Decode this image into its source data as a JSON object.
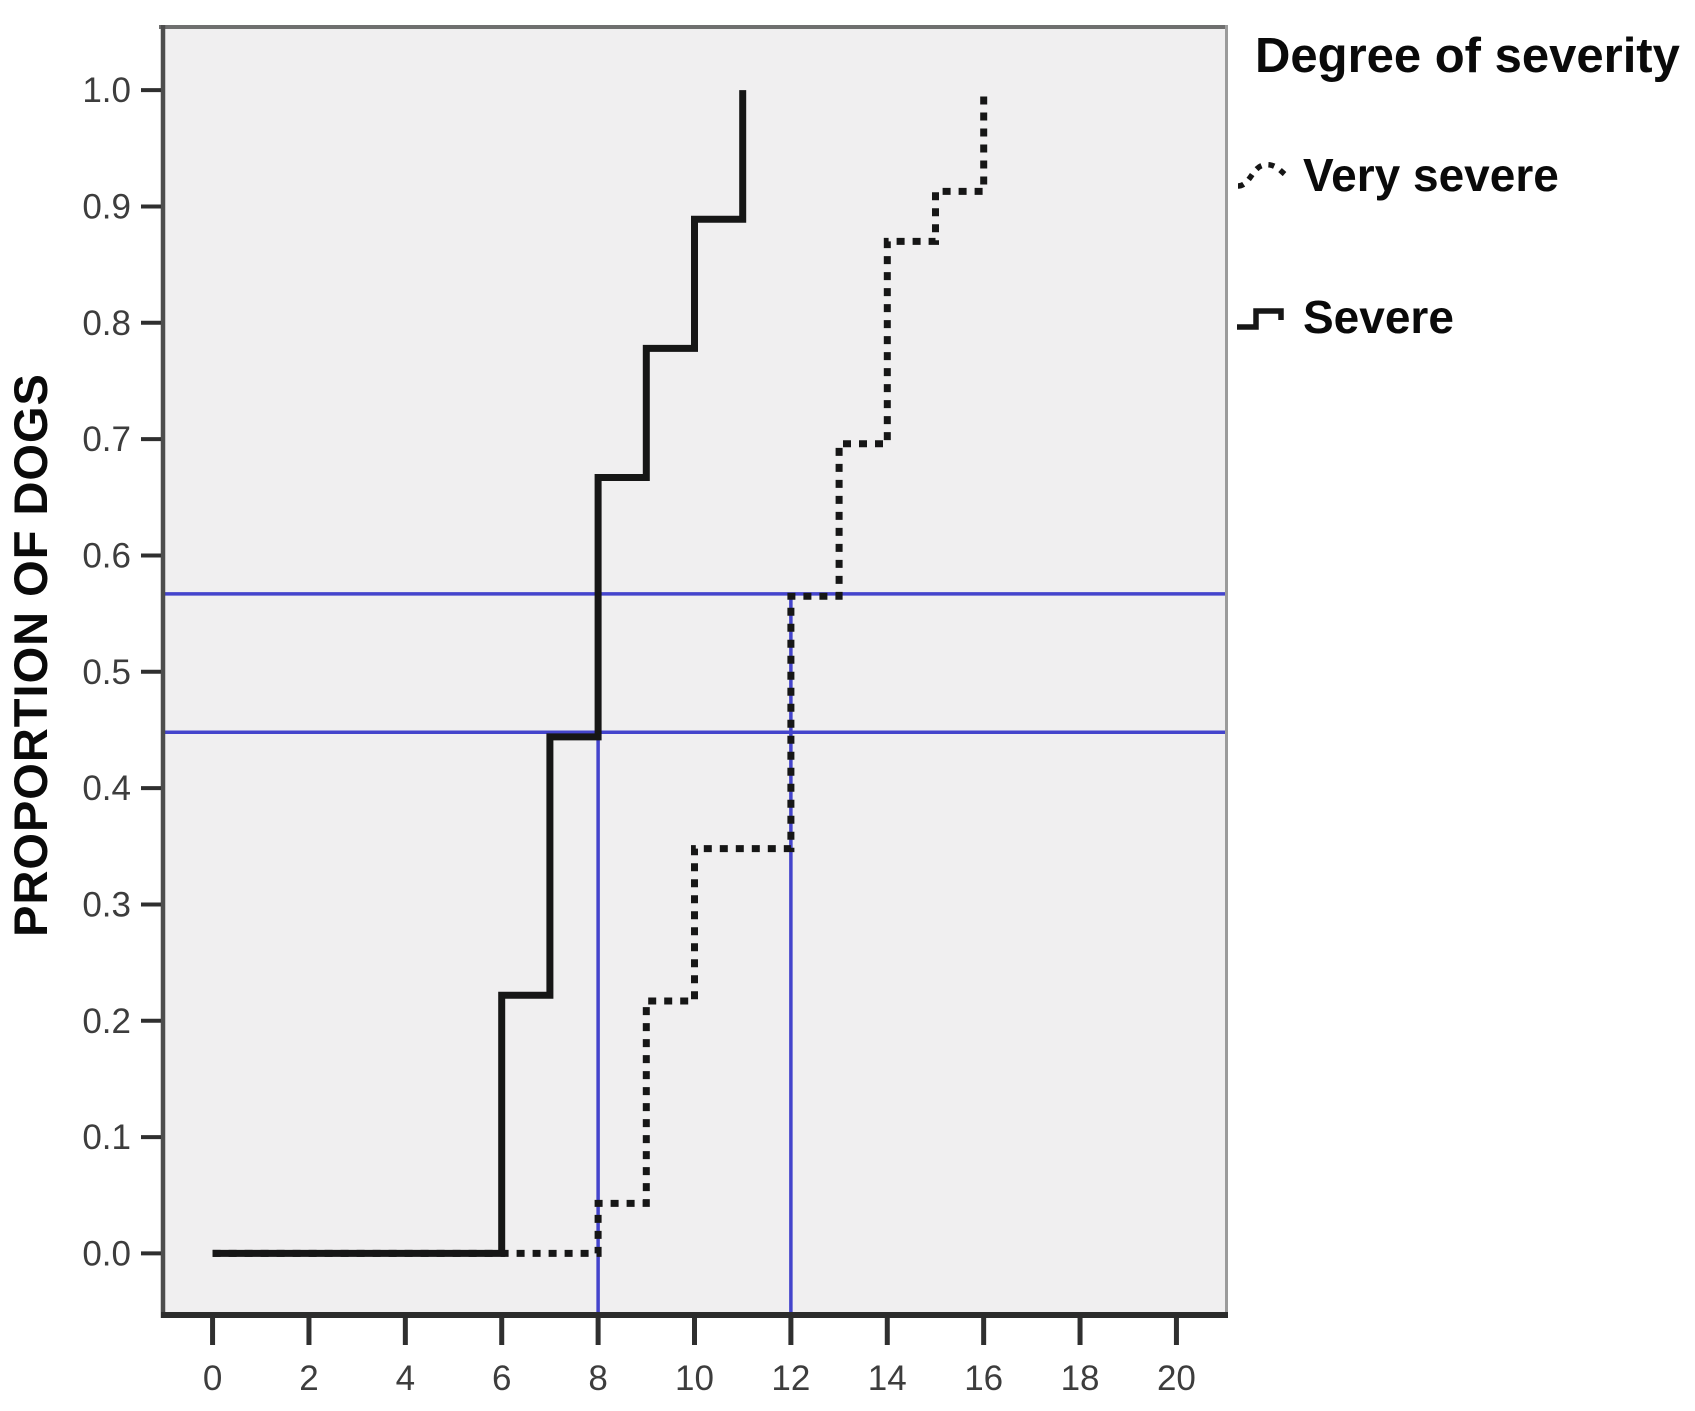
{
  "figure": {
    "y_axis_label": "PROPORTION OF DOGS"
  },
  "legend": {
    "title": "Degree of severity",
    "items": [
      {
        "label": "Very severe",
        "style": "dotted"
      },
      {
        "label": "Severe",
        "style": "solid"
      }
    ]
  },
  "chart_data": {
    "type": "line",
    "subtype": "step",
    "title": "",
    "xlabel": "",
    "ylabel": "PROPORTION OF DOGS",
    "xlim": [
      -1.07,
      21.07
    ],
    "ylim": [
      -0.0555,
      1.056
    ],
    "grid": false,
    "legend_position": "top-right-outside",
    "x_ticks": [
      0,
      2,
      4,
      6,
      8,
      10,
      12,
      14,
      16,
      18,
      20
    ],
    "y_ticks": [
      {
        "label": "0.0",
        "value": 0.0
      },
      {
        "label": "0.1",
        "value": 0.1
      },
      {
        "label": "0.2",
        "value": 0.2
      },
      {
        "label": "0.3",
        "value": 0.3
      },
      {
        "label": "0.4",
        "value": 0.4
      },
      {
        "label": "0.5",
        "value": 0.5
      },
      {
        "label": "0.6",
        "value": 0.6
      },
      {
        "label": "0.7",
        "value": 0.7
      },
      {
        "label": "0.8",
        "value": 0.8
      },
      {
        "label": "0.9",
        "value": 0.9
      },
      {
        "label": "1.0",
        "value": 1.0
      }
    ],
    "series": [
      {
        "name": "Very severe",
        "style": "dotted",
        "points": [
          [
            0,
            0
          ],
          [
            8,
            0
          ],
          [
            8,
            0.043
          ],
          [
            9,
            0.043
          ],
          [
            9,
            0.217
          ],
          [
            10,
            0.217
          ],
          [
            10,
            0.348
          ],
          [
            12,
            0.348
          ],
          [
            12,
            0.565
          ],
          [
            13,
            0.565
          ],
          [
            13,
            0.696
          ],
          [
            14,
            0.696
          ],
          [
            14,
            0.87
          ],
          [
            15,
            0.87
          ],
          [
            15,
            0.913
          ],
          [
            16,
            0.913
          ],
          [
            16,
            1.0
          ]
        ]
      },
      {
        "name": "Severe",
        "style": "solid",
        "points": [
          [
            0,
            0
          ],
          [
            6,
            0
          ],
          [
            6,
            0.222
          ],
          [
            7,
            0.222
          ],
          [
            7,
            0.444
          ],
          [
            8,
            0.444
          ],
          [
            8,
            0.667
          ],
          [
            9,
            0.667
          ],
          [
            9,
            0.778
          ],
          [
            10,
            0.778
          ],
          [
            10,
            0.889
          ],
          [
            11,
            0.889
          ],
          [
            11,
            1.0
          ]
        ]
      }
    ],
    "reference_lines": {
      "horizontal": [
        {
          "y": 0.567
        },
        {
          "y": 0.448
        }
      ],
      "vertical": [
        {
          "x": 8,
          "y0": -0.0555,
          "y1": 0.487
        },
        {
          "x": 12,
          "y0": -0.0555,
          "y1": 0.567
        }
      ]
    },
    "colors": {
      "line": "#161616",
      "reference": "#4444cc",
      "plot_bg": "#f0eff0",
      "tick": "#2f2f2f",
      "tick_label": "#3d3d3d",
      "border_top": "#6f6f6f",
      "border_right": "#9b9b9b",
      "border_left": "#4d4d4d",
      "border_bottom": "#2c2c2c"
    }
  }
}
